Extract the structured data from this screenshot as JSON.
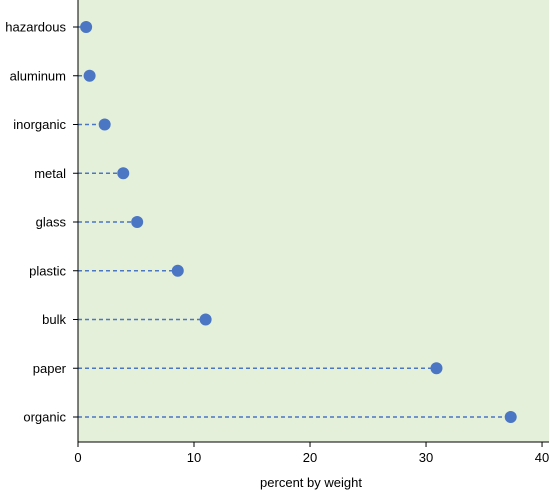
{
  "chart_data": {
    "type": "dot",
    "categories": [
      "hazardous",
      "aluminum",
      "inorganic",
      "metal",
      "glass",
      "plastic",
      "bulk",
      "paper",
      "organic"
    ],
    "values": [
      0.7,
      1.0,
      2.3,
      3.9,
      5.1,
      8.6,
      11.0,
      30.9,
      37.3
    ],
    "xlabel": "percent by weight",
    "ylabel": "",
    "xlim": [
      0,
      40.6
    ],
    "xticks": [
      0,
      10,
      20,
      30,
      40
    ],
    "grid": false,
    "colors": {
      "panel_background": "#e4f0da",
      "marker": "#4a76c4",
      "leader_line": "#4a76c4",
      "axis": "#000000"
    }
  }
}
